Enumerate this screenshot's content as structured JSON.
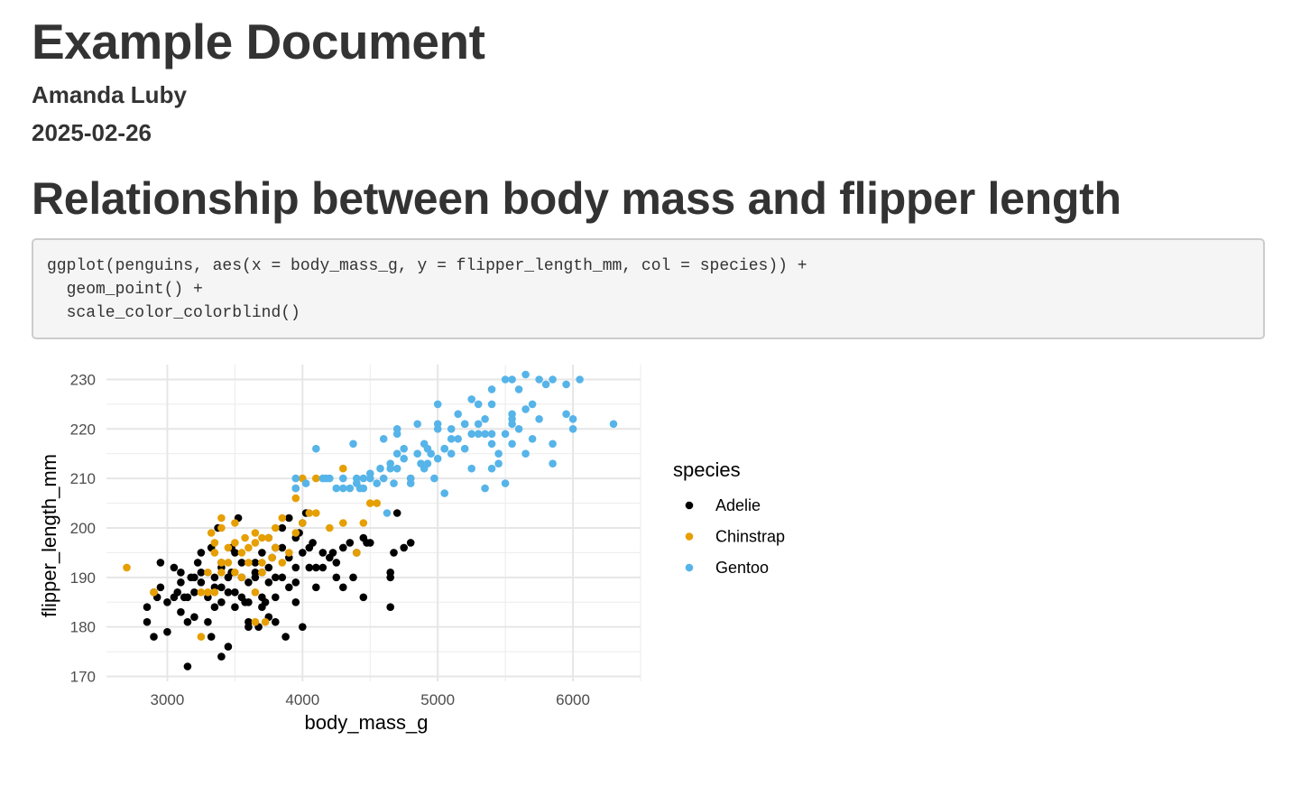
{
  "document": {
    "title": "Example Document",
    "author": "Amanda Luby",
    "date": "2025-02-26",
    "section_title": "Relationship between body mass and flipper length",
    "code_lines": [
      "ggplot(penguins, aes(x = body_mass_g, y = flipper_length_mm, col = species)) +",
      "  geom_point() +",
      "  scale_color_colorblind()"
    ]
  },
  "chart_data": {
    "type": "scatter",
    "title": "",
    "xlabel": "body_mass_g",
    "ylabel": "flipper_length_mm",
    "xlim": [
      2550,
      6500
    ],
    "ylim": [
      169,
      233
    ],
    "x_ticks": [
      3000,
      4000,
      5000,
      6000
    ],
    "y_ticks": [
      170,
      180,
      190,
      200,
      210,
      220,
      230
    ],
    "grid": true,
    "legend_title": "species",
    "legend_position": "right",
    "series": [
      {
        "name": "Adelie",
        "color": "#000000",
        "points": [
          [
            3150,
            172
          ],
          [
            3400,
            174
          ],
          [
            3450,
            176
          ],
          [
            2850,
            184
          ],
          [
            2850,
            181
          ],
          [
            2900,
            178
          ],
          [
            3000,
            179
          ],
          [
            2950,
            188
          ],
          [
            2900,
            187
          ],
          [
            2950,
            193
          ],
          [
            3050,
            192
          ],
          [
            3100,
            191
          ],
          [
            3100,
            189
          ],
          [
            3000,
            185
          ],
          [
            3050,
            186
          ],
          [
            3100,
            183
          ],
          [
            3150,
            186
          ],
          [
            3200,
            182
          ],
          [
            3150,
            181
          ],
          [
            3200,
            187
          ],
          [
            3200,
            190
          ],
          [
            3250,
            189
          ],
          [
            3250,
            191
          ],
          [
            3250,
            195
          ],
          [
            3300,
            186
          ],
          [
            3300,
            181
          ],
          [
            3350,
            184
          ],
          [
            3350,
            188
          ],
          [
            3350,
            190
          ],
          [
            3400,
            192
          ],
          [
            3400,
            193
          ],
          [
            3400,
            188
          ],
          [
            3400,
            185
          ],
          [
            3450,
            187
          ],
          [
            3450,
            190
          ],
          [
            3500,
            195
          ],
          [
            3500,
            187
          ],
          [
            3500,
            184
          ],
          [
            3550,
            190
          ],
          [
            3550,
            193
          ],
          [
            3550,
            186
          ],
          [
            3600,
            181
          ],
          [
            3600,
            185
          ],
          [
            3600,
            189
          ],
          [
            3650,
            191
          ],
          [
            3650,
            190
          ],
          [
            3650,
            193
          ],
          [
            3700,
            184
          ],
          [
            3700,
            191
          ],
          [
            3700,
            186
          ],
          [
            3700,
            195
          ],
          [
            3750,
            182
          ],
          [
            3750,
            189
          ],
          [
            3750,
            198
          ],
          [
            3750,
            192
          ],
          [
            3800,
            186
          ],
          [
            3800,
            190
          ],
          [
            3800,
            196
          ],
          [
            3850,
            190
          ],
          [
            3850,
            196
          ],
          [
            3900,
            202
          ],
          [
            3900,
            188
          ],
          [
            3950,
            185
          ],
          [
            3950,
            189
          ],
          [
            3950,
            192
          ],
          [
            3950,
            198
          ],
          [
            4000,
            195
          ],
          [
            4000,
            201
          ],
          [
            4000,
            180
          ],
          [
            4050,
            192
          ],
          [
            4050,
            196
          ],
          [
            4100,
            192
          ],
          [
            4100,
            188
          ],
          [
            4150,
            195
          ],
          [
            4200,
            194
          ],
          [
            4250,
            193
          ],
          [
            4250,
            190
          ],
          [
            4300,
            188
          ],
          [
            4300,
            196
          ],
          [
            4350,
            197
          ],
          [
            4400,
            195
          ],
          [
            4450,
            198
          ],
          [
            4450,
            186
          ],
          [
            4500,
            197
          ],
          [
            4650,
            191
          ],
          [
            4650,
            184
          ],
          [
            4700,
            203
          ],
          [
            4750,
            196
          ],
          [
            4800,
            197
          ],
          [
            3325,
            178
          ],
          [
            3375,
            200
          ],
          [
            3525,
            202
          ],
          [
            3600,
            180
          ],
          [
            3800,
            181
          ],
          [
            3875,
            178
          ],
          [
            3075,
            187
          ],
          [
            3175,
            190
          ],
          [
            3225,
            193
          ],
          [
            3475,
            191
          ],
          [
            3675,
            180
          ],
          [
            3725,
            185
          ],
          [
            3775,
            194
          ],
          [
            3850,
            200
          ],
          [
            4025,
            203
          ],
          [
            4075,
            197
          ],
          [
            4150,
            192
          ],
          [
            4225,
            195
          ],
          [
            4375,
            190
          ],
          [
            4475,
            197
          ],
          [
            4650,
            190
          ],
          [
            4675,
            195
          ],
          [
            2925,
            186
          ],
          [
            3125,
            186
          ],
          [
            3325,
            196
          ],
          [
            3575,
            185
          ],
          [
            3975,
            199
          ],
          [
            3475,
            196
          ],
          [
            3900,
            194
          ]
        ]
      },
      {
        "name": "Chinstrap",
        "color": "#E69F00",
        "points": [
          [
            2700,
            192
          ],
          [
            2900,
            187
          ],
          [
            3250,
            178
          ],
          [
            3250,
            187
          ],
          [
            3300,
            187
          ],
          [
            3350,
            187
          ],
          [
            3300,
            191
          ],
          [
            3350,
            195
          ],
          [
            3350,
            197
          ],
          [
            3400,
            191
          ],
          [
            3400,
            193
          ],
          [
            3400,
            200
          ],
          [
            3400,
            202
          ],
          [
            3450,
            193
          ],
          [
            3450,
            196
          ],
          [
            3500,
            191
          ],
          [
            3500,
            197
          ],
          [
            3500,
            201
          ],
          [
            3550,
            190
          ],
          [
            3550,
            195
          ],
          [
            3600,
            196
          ],
          [
            3600,
            193
          ],
          [
            3650,
            181
          ],
          [
            3650,
            199
          ],
          [
            3650,
            197
          ],
          [
            3700,
            191
          ],
          [
            3700,
            193
          ],
          [
            3700,
            198
          ],
          [
            3750,
            198
          ],
          [
            3775,
            194
          ],
          [
            3800,
            200
          ],
          [
            3800,
            196
          ],
          [
            3850,
            202
          ],
          [
            3850,
            193
          ],
          [
            3900,
            195
          ],
          [
            3950,
            199
          ],
          [
            3950,
            206
          ],
          [
            3950,
            208
          ],
          [
            4000,
            210
          ],
          [
            4000,
            201
          ],
          [
            4050,
            203
          ],
          [
            4100,
            210
          ],
          [
            4100,
            203
          ],
          [
            4200,
            200
          ],
          [
            4300,
            201
          ],
          [
            4300,
            212
          ],
          [
            4400,
            195
          ],
          [
            4450,
            201
          ],
          [
            4500,
            205
          ],
          [
            4550,
            205
          ],
          [
            4800,
            210
          ],
          [
            3650,
            187
          ],
          [
            3325,
            199
          ],
          [
            3575,
            198
          ],
          [
            3725,
            181
          ]
        ]
      },
      {
        "name": "Gentoo",
        "color": "#56B4E9",
        "points": [
          [
            3950,
            208
          ],
          [
            3950,
            210
          ],
          [
            4100,
            216
          ],
          [
            4150,
            210
          ],
          [
            4200,
            210
          ],
          [
            4250,
            208
          ],
          [
            4300,
            208
          ],
          [
            4300,
            210
          ],
          [
            4350,
            208
          ],
          [
            4375,
            217
          ],
          [
            4400,
            210
          ],
          [
            4400,
            209
          ],
          [
            4450,
            210
          ],
          [
            4450,
            208
          ],
          [
            4500,
            210
          ],
          [
            4500,
            211
          ],
          [
            4550,
            209
          ],
          [
            4600,
            210
          ],
          [
            4600,
            218
          ],
          [
            4625,
            203
          ],
          [
            4650,
            212
          ],
          [
            4650,
            213
          ],
          [
            4700,
            215
          ],
          [
            4700,
            220
          ],
          [
            4700,
            219
          ],
          [
            4700,
            212
          ],
          [
            4750,
            214
          ],
          [
            4750,
            216
          ],
          [
            4800,
            209
          ],
          [
            4800,
            210
          ],
          [
            4850,
            215
          ],
          [
            4850,
            221
          ],
          [
            4875,
            213
          ],
          [
            4900,
            217
          ],
          [
            4900,
            212
          ],
          [
            4925,
            216
          ],
          [
            4950,
            215
          ],
          [
            5000,
            214
          ],
          [
            5000,
            220
          ],
          [
            5000,
            225
          ],
          [
            5000,
            221
          ],
          [
            5050,
            207
          ],
          [
            5050,
            216
          ],
          [
            5100,
            215
          ],
          [
            5150,
            218
          ],
          [
            5200,
            216
          ],
          [
            5200,
            221
          ],
          [
            5250,
            212
          ],
          [
            5250,
            226
          ],
          [
            5300,
            219
          ],
          [
            5300,
            225
          ],
          [
            5350,
            208
          ],
          [
            5350,
            222
          ],
          [
            5400,
            225
          ],
          [
            5400,
            219
          ],
          [
            5400,
            228
          ],
          [
            5450,
            215
          ],
          [
            5500,
            219
          ],
          [
            5500,
            230
          ],
          [
            5500,
            209
          ],
          [
            5550,
            223
          ],
          [
            5550,
            222
          ],
          [
            5550,
            230
          ],
          [
            5600,
            228
          ],
          [
            5650,
            231
          ],
          [
            5650,
            224
          ],
          [
            5700,
            218
          ],
          [
            5700,
            225
          ],
          [
            5750,
            230
          ],
          [
            5800,
            229
          ],
          [
            5850,
            213
          ],
          [
            5850,
            230
          ],
          [
            5950,
            229
          ],
          [
            5950,
            223
          ],
          [
            6000,
            222
          ],
          [
            6000,
            220
          ],
          [
            6050,
            230
          ],
          [
            6300,
            221
          ],
          [
            5050,
            216
          ],
          [
            5100,
            220
          ],
          [
            5150,
            223
          ],
          [
            5200,
            221
          ],
          [
            5250,
            219
          ],
          [
            5350,
            219
          ],
          [
            5400,
            217
          ],
          [
            5450,
            213
          ],
          [
            5550,
            221
          ],
          [
            5550,
            217
          ],
          [
            5650,
            215
          ],
          [
            5750,
            222
          ],
          [
            5850,
            217
          ],
          [
            5600,
            220
          ],
          [
            5400,
            212
          ],
          [
            5300,
            221
          ],
          [
            5100,
            218
          ],
          [
            4975,
            210
          ],
          [
            4925,
            213
          ],
          [
            4675,
            209
          ],
          [
            4575,
            212
          ],
          [
            4425,
            208
          ],
          [
            4175,
            210
          ],
          [
            4025,
            209
          ]
        ]
      }
    ]
  }
}
